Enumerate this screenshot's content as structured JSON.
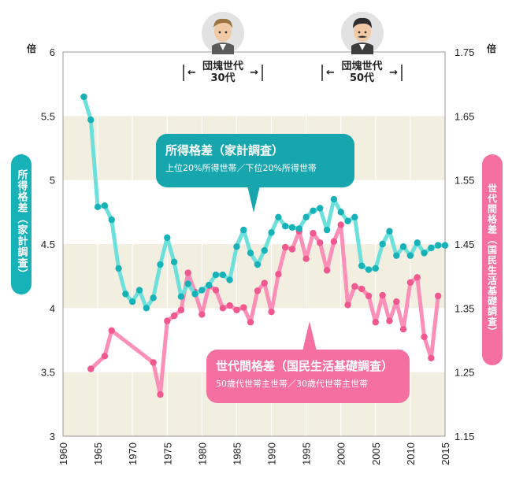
{
  "chart_data": {
    "type": "line",
    "x_ticks": [
      "1960",
      "1965",
      "1970",
      "1975",
      "1980",
      "1985",
      "1990",
      "1995",
      "2000",
      "2005",
      "2010",
      "2015"
    ],
    "xlim": [
      1960,
      2015
    ],
    "y_left": {
      "ticks": [
        "3",
        "3.5",
        "4",
        "4.5",
        "5",
        "5.5",
        "6"
      ],
      "range": [
        3,
        6
      ],
      "unit": "倍"
    },
    "y_right": {
      "ticks": [
        "1.15",
        "1.25",
        "1.35",
        "1.45",
        "1.55",
        "1.65",
        "1.75"
      ],
      "range": [
        1.15,
        1.75
      ],
      "unit": "倍"
    },
    "band_color": "#f3efe0",
    "series": [
      {
        "name": "所得格差（家計調査）",
        "subtitle": "上位20%所得世帯／下位20%所得世帯",
        "axis": "left",
        "color": "#6ee0dc",
        "marker_color": "#17b1b8",
        "x": [
          1963,
          1964,
          1965,
          1966,
          1967,
          1968,
          1969,
          1970,
          1971,
          1972,
          1973,
          1974,
          1975,
          1976,
          1977,
          1978,
          1979,
          1980,
          1981,
          1982,
          1983,
          1984,
          1985,
          1986,
          1987,
          1988,
          1989,
          1990,
          1991,
          1992,
          1993,
          1994,
          1995,
          1996,
          1997,
          1998,
          1999,
          2000,
          2001,
          2002,
          2003,
          2004,
          2005,
          2006,
          2007,
          2008,
          2009,
          2010,
          2011,
          2012,
          2013,
          2014,
          2015
        ],
        "y": [
          5.65,
          5.47,
          4.79,
          4.8,
          4.69,
          4.31,
          4.11,
          4.05,
          4.14,
          4.0,
          4.08,
          4.34,
          4.55,
          4.36,
          4.09,
          4.19,
          4.11,
          4.14,
          4.18,
          4.26,
          4.26,
          4.22,
          4.48,
          4.61,
          4.43,
          4.34,
          4.45,
          4.59,
          4.71,
          4.64,
          4.63,
          4.62,
          4.71,
          4.76,
          4.78,
          4.61,
          4.85,
          4.75,
          4.68,
          4.71,
          4.33,
          4.3,
          4.31,
          4.5,
          4.6,
          4.41,
          4.48,
          4.41,
          4.51,
          4.43,
          4.47,
          4.49,
          4.49
        ]
      },
      {
        "name": "世代間格差（国民生活基礎調査）",
        "subtitle": "50歳代世帯主世帯／30歳代世帯主世帯",
        "axis": "right",
        "color": "#fb8fb7",
        "marker_color": "#f0588f",
        "x": [
          1964,
          1966,
          1967,
          1973,
          1974,
          1975,
          1976,
          1977,
          1978,
          1979,
          1980,
          1981,
          1982,
          1983,
          1984,
          1985,
          1986,
          1987,
          1988,
          1989,
          1990,
          1991,
          1992,
          1993,
          1994,
          1995,
          1996,
          1997,
          1998,
          1999,
          2000,
          2001,
          2002,
          2003,
          2004,
          2005,
          2006,
          2007,
          2008,
          2009,
          2010,
          2011,
          2012,
          2013,
          2014
        ],
        "y": [
          1.255,
          1.275,
          1.315,
          1.265,
          1.215,
          1.33,
          1.338,
          1.347,
          1.405,
          1.375,
          1.34,
          1.385,
          1.378,
          1.35,
          1.354,
          1.347,
          1.351,
          1.328,
          1.377,
          1.389,
          1.344,
          1.403,
          1.445,
          1.442,
          1.47,
          1.427,
          1.467,
          1.452,
          1.409,
          1.454,
          1.48,
          1.355,
          1.384,
          1.38,
          1.369,
          1.328,
          1.37,
          1.33,
          1.36,
          1.317,
          1.39,
          1.398,
          1.305,
          1.272,
          1.369
        ]
      }
    ],
    "annotations": [
      {
        "title": "団塊世代",
        "sub": "30代",
        "from": 1977,
        "to": 1988
      },
      {
        "title": "団塊世代",
        "sub": "50代",
        "from": 1997,
        "to": 2008
      }
    ]
  },
  "left_axis_label": "所得格差（家計調査）",
  "right_axis_label": "世代間格差（国民生活基礎調査）"
}
